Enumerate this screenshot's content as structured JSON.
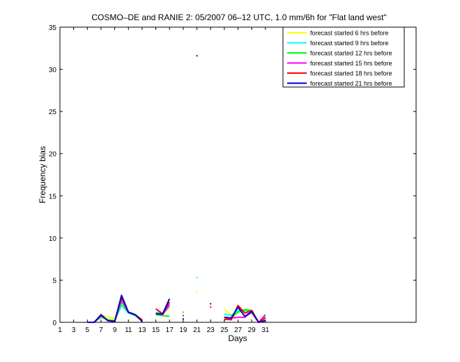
{
  "chart_data": {
    "type": "line",
    "title": "COSMO–DE and RANIE 2: 05/2007 06–12 UTC, 1.0 mm/6h for \"Flat land west\"",
    "xlabel": "Days",
    "ylabel": "Frequency bias",
    "xlim": [
      1,
      53
    ],
    "ylim": [
      0,
      35
    ],
    "xticks": [
      1,
      3,
      5,
      7,
      9,
      11,
      13,
      15,
      17,
      19,
      21,
      23,
      25,
      27,
      29,
      31
    ],
    "yticks": [
      0,
      5,
      10,
      15,
      20,
      25,
      30,
      35
    ],
    "grid": false,
    "legend_position": "top-right",
    "x": [
      1,
      2,
      3,
      4,
      5,
      6,
      7,
      8,
      9,
      10,
      11,
      12,
      13,
      14,
      15,
      16,
      17,
      18,
      19,
      20,
      21,
      22,
      23,
      24,
      25,
      26,
      27,
      28,
      29,
      30,
      31
    ],
    "series": [
      {
        "name": "forecast started 6 hrs before",
        "color": "#ffff00",
        "values": [
          null,
          null,
          null,
          null,
          0,
          0,
          0.9,
          0.6,
          0.5,
          2.3,
          1.2,
          0.9,
          0.3,
          null,
          1.0,
          1.0,
          1.7,
          null,
          null,
          null,
          3.6,
          null,
          0.3,
          null,
          1.5,
          0.9,
          1.2,
          1.3,
          1.0,
          0.0,
          0.8
        ]
      },
      {
        "name": "forecast started 9 hrs before",
        "color": "#00ffff",
        "values": [
          null,
          null,
          null,
          null,
          0,
          0,
          0.6,
          0.3,
          0.2,
          2.0,
          1.1,
          0.8,
          0.2,
          null,
          1.2,
          1.0,
          1.9,
          null,
          null,
          null,
          5.3,
          null,
          null,
          null,
          1.0,
          0.8,
          1.4,
          1.4,
          1.2,
          0.0,
          0.7
        ]
      },
      {
        "name": "forecast started 12 hrs before",
        "color": "#00ff00",
        "values": [
          null,
          null,
          null,
          null,
          0,
          0,
          0.7,
          0.3,
          0.2,
          2.4,
          1.2,
          0.8,
          0.2,
          null,
          0.9,
          0.8,
          0.7,
          null,
          1.2,
          null,
          null,
          null,
          null,
          null,
          0.6,
          0.5,
          1.2,
          1.5,
          1.4,
          0.0,
          0.6
        ]
      },
      {
        "name": "forecast started 15 hrs before",
        "color": "#ff00ff",
        "values": [
          null,
          null,
          null,
          null,
          0,
          0,
          0.8,
          0.2,
          0.1,
          2.7,
          1.2,
          0.9,
          0.2,
          null,
          1.1,
          0.9,
          2.1,
          null,
          null,
          null,
          null,
          null,
          null,
          null,
          0.3,
          0.5,
          0.6,
          0.6,
          1.2,
          0.0,
          0.9
        ]
      },
      {
        "name": "forecast started 18 hrs before",
        "color": "#ff0000",
        "values": [
          null,
          null,
          null,
          null,
          0,
          0,
          0.8,
          0.2,
          0.1,
          3.0,
          1.2,
          0.9,
          0.3,
          null,
          1.6,
          1.0,
          2.4,
          null,
          0.8,
          null,
          null,
          null,
          1.8,
          null,
          0.4,
          0.3,
          2.0,
          1.1,
          1.4,
          0.0,
          0.5
        ]
      },
      {
        "name": "forecast started 21 hrs before",
        "color": "#0000cc",
        "values": [
          null,
          null,
          null,
          null,
          0,
          0,
          0.9,
          0.2,
          0.1,
          3.2,
          1.2,
          0.9,
          0.1,
          null,
          1.0,
          1.0,
          2.8,
          null,
          0.4,
          null,
          31.6,
          null,
          2.2,
          null,
          0.6,
          0.5,
          1.8,
          0.7,
          1.3,
          0.0,
          0.2
        ]
      }
    ]
  }
}
